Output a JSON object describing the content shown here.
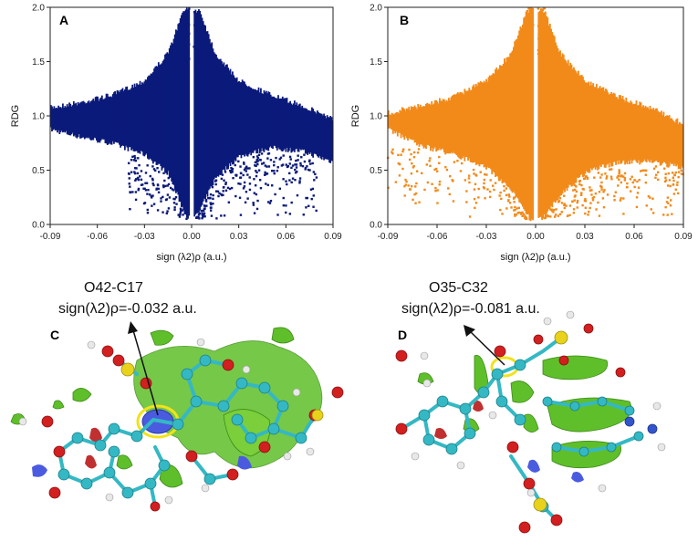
{
  "colors": {
    "series_a": "#0b1a7a",
    "series_b": "#f28a1a",
    "atom_carbon": "#34b8c4",
    "atom_oxygen": "#d21f1f",
    "atom_sulfur": "#e8d21c",
    "atom_hydrogen": "#e8e8e8",
    "atom_nitrogen": "#3355cc",
    "surface_green": "#5fbf2a",
    "surface_blue": "#4a5be0",
    "highlight_ring": "#f2e21a"
  },
  "icons": {
    "molecule_c": "molecule-nci-isosurface",
    "molecule_d": "molecule-nci-isosurface"
  },
  "chart_data": [
    {
      "type": "scatter",
      "panel": "A",
      "xlabel": "sign (λ2)ρ (a.u.)",
      "ylabel": "RDG",
      "xlim": [
        -0.09,
        0.09
      ],
      "ylim": [
        0.0,
        2.0
      ],
      "xticks": [
        "-0.09",
        "-0.06",
        "-0.03",
        "0.00",
        "0.03",
        "0.06",
        "0.09"
      ],
      "yticks": [
        "0.0",
        "0.5",
        "1.0",
        "1.5",
        "2.0"
      ],
      "color": "#0b1a7a",
      "grid": false,
      "envelope": {
        "x": [
          -0.09,
          -0.07,
          -0.05,
          -0.03,
          -0.015,
          -0.005,
          0.0,
          0.005,
          0.015,
          0.03,
          0.05,
          0.07,
          0.09
        ],
        "upper": [
          1.1,
          1.15,
          1.22,
          1.35,
          1.6,
          2.0,
          2.0,
          2.0,
          1.6,
          1.35,
          1.22,
          1.12,
          1.0
        ],
        "lower": [
          0.85,
          0.78,
          0.72,
          0.62,
          0.45,
          0.1,
          0.0,
          0.1,
          0.4,
          0.6,
          0.68,
          0.65,
          0.55
        ]
      },
      "outliers_range": {
        "x": [
          -0.04,
          0.08
        ],
        "y": [
          0.05,
          0.8
        ]
      }
    },
    {
      "type": "scatter",
      "panel": "B",
      "xlabel": "sign (λ2)ρ (a.u.)",
      "ylabel": "RDG",
      "xlim": [
        -0.09,
        0.09
      ],
      "ylim": [
        0.0,
        2.0
      ],
      "xticks": [
        "-0.09",
        "-0.06",
        "-0.03",
        "0.00",
        "0.03",
        "0.06",
        "0.09"
      ],
      "yticks": [
        "0.0",
        "0.5",
        "1.0",
        "1.5",
        "2.0"
      ],
      "color": "#f28a1a",
      "grid": false,
      "envelope": {
        "x": [
          -0.09,
          -0.07,
          -0.05,
          -0.03,
          -0.015,
          -0.005,
          0.0,
          0.005,
          0.015,
          0.03,
          0.05,
          0.07,
          0.09
        ],
        "upper": [
          1.05,
          1.12,
          1.2,
          1.35,
          1.6,
          2.0,
          2.0,
          2.0,
          1.6,
          1.35,
          1.2,
          1.1,
          0.95
        ],
        "lower": [
          0.85,
          0.7,
          0.62,
          0.5,
          0.3,
          0.05,
          0.0,
          0.05,
          0.25,
          0.45,
          0.55,
          0.55,
          0.5
        ]
      },
      "outliers_range": {
        "x": [
          -0.09,
          0.09
        ],
        "y": [
          0.05,
          0.7
        ]
      }
    }
  ],
  "panels": {
    "a_letter": "A",
    "b_letter": "B",
    "c_letter": "C",
    "d_letter": "D",
    "c_annotation": {
      "line1": "O42-C17",
      "line2": "sign(λ2)ρ=-0.032 a.u."
    },
    "d_annotation": {
      "line1": "O35-C32",
      "line2": "sign(λ2)ρ=-0.081 a.u."
    }
  }
}
